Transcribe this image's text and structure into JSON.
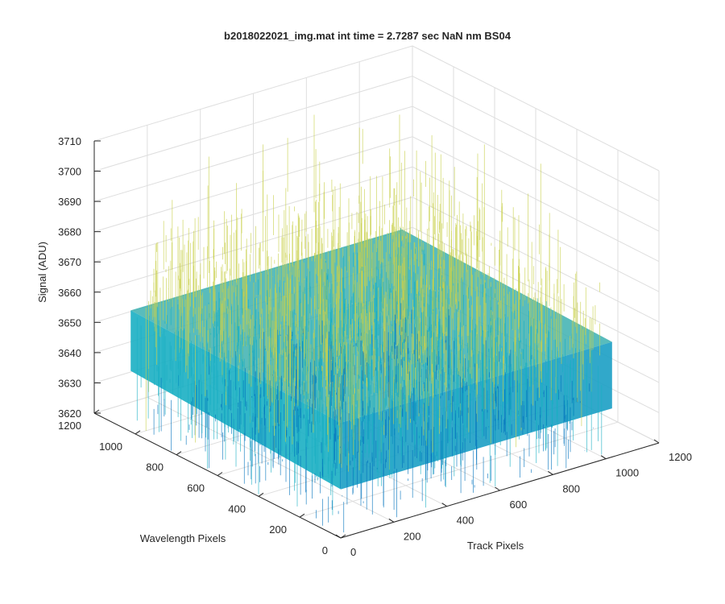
{
  "chart_data": {
    "type": "surface",
    "title": "b2018022021_img.mat int time = 2.7287 sec  NaN nm BS04",
    "xlabel": "Track Pixels",
    "ylabel": "Wavelength Pixels",
    "zlabel": "Signal (ADU)",
    "xlim": [
      0,
      1200
    ],
    "ylim": [
      0,
      1200
    ],
    "zlim": [
      3620,
      3710
    ],
    "x_ticks": [
      0,
      200,
      400,
      600,
      800,
      1000,
      1200
    ],
    "y_ticks": [
      0,
      200,
      400,
      600,
      800,
      1000,
      1200
    ],
    "z_ticks": [
      3620,
      3630,
      3640,
      3650,
      3660,
      3670,
      3680,
      3690,
      3700,
      3710
    ],
    "x_data_range": [
      1,
      1024
    ],
    "y_data_range": [
      1,
      1024
    ],
    "signal_mean": 3650,
    "signal_spread": 28,
    "grid": true,
    "colormap": "parula",
    "colors": {
      "low": "#0072BD",
      "mid": "#1AAFC3",
      "high": "#C9D04A",
      "axis": "#262626",
      "grid": "#DEDEDE"
    }
  }
}
